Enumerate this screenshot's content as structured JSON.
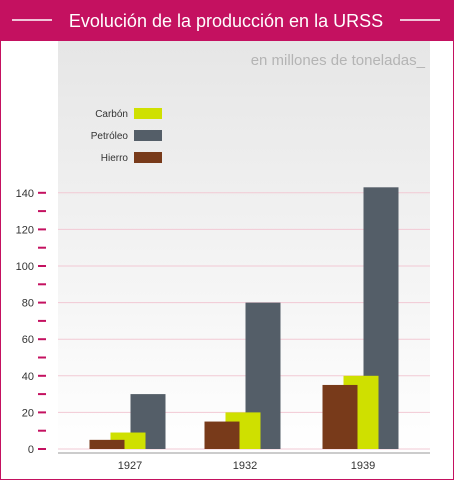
{
  "colors": {
    "accent": "#c41160",
    "carbon": "#cfe000",
    "petroleo": "#545e68",
    "hierro": "#783a1a",
    "plot_gradient_top": "#e6e6e6",
    "plot_gradient_bottom": "#ffffff"
  },
  "chart_data": {
    "type": "bar",
    "title": "Evolución de la producción en la URSS",
    "subtitle": "en millones de toneladas_",
    "categories": [
      "1927",
      "1932",
      "1939"
    ],
    "series": [
      {
        "name": "Carbón",
        "values": [
          9,
          20,
          40
        ],
        "color": "#cfe000"
      },
      {
        "name": "Petróleo",
        "values": [
          30,
          80,
          143
        ],
        "color": "#545e68"
      },
      {
        "name": "Hierro",
        "values": [
          5,
          15,
          35
        ],
        "color": "#783a1a"
      }
    ],
    "y_ticks": [
      0,
      20,
      40,
      60,
      80,
      100,
      120,
      140
    ],
    "ylim": [
      0,
      150
    ],
    "grid": true,
    "legend_position": "top-left"
  }
}
